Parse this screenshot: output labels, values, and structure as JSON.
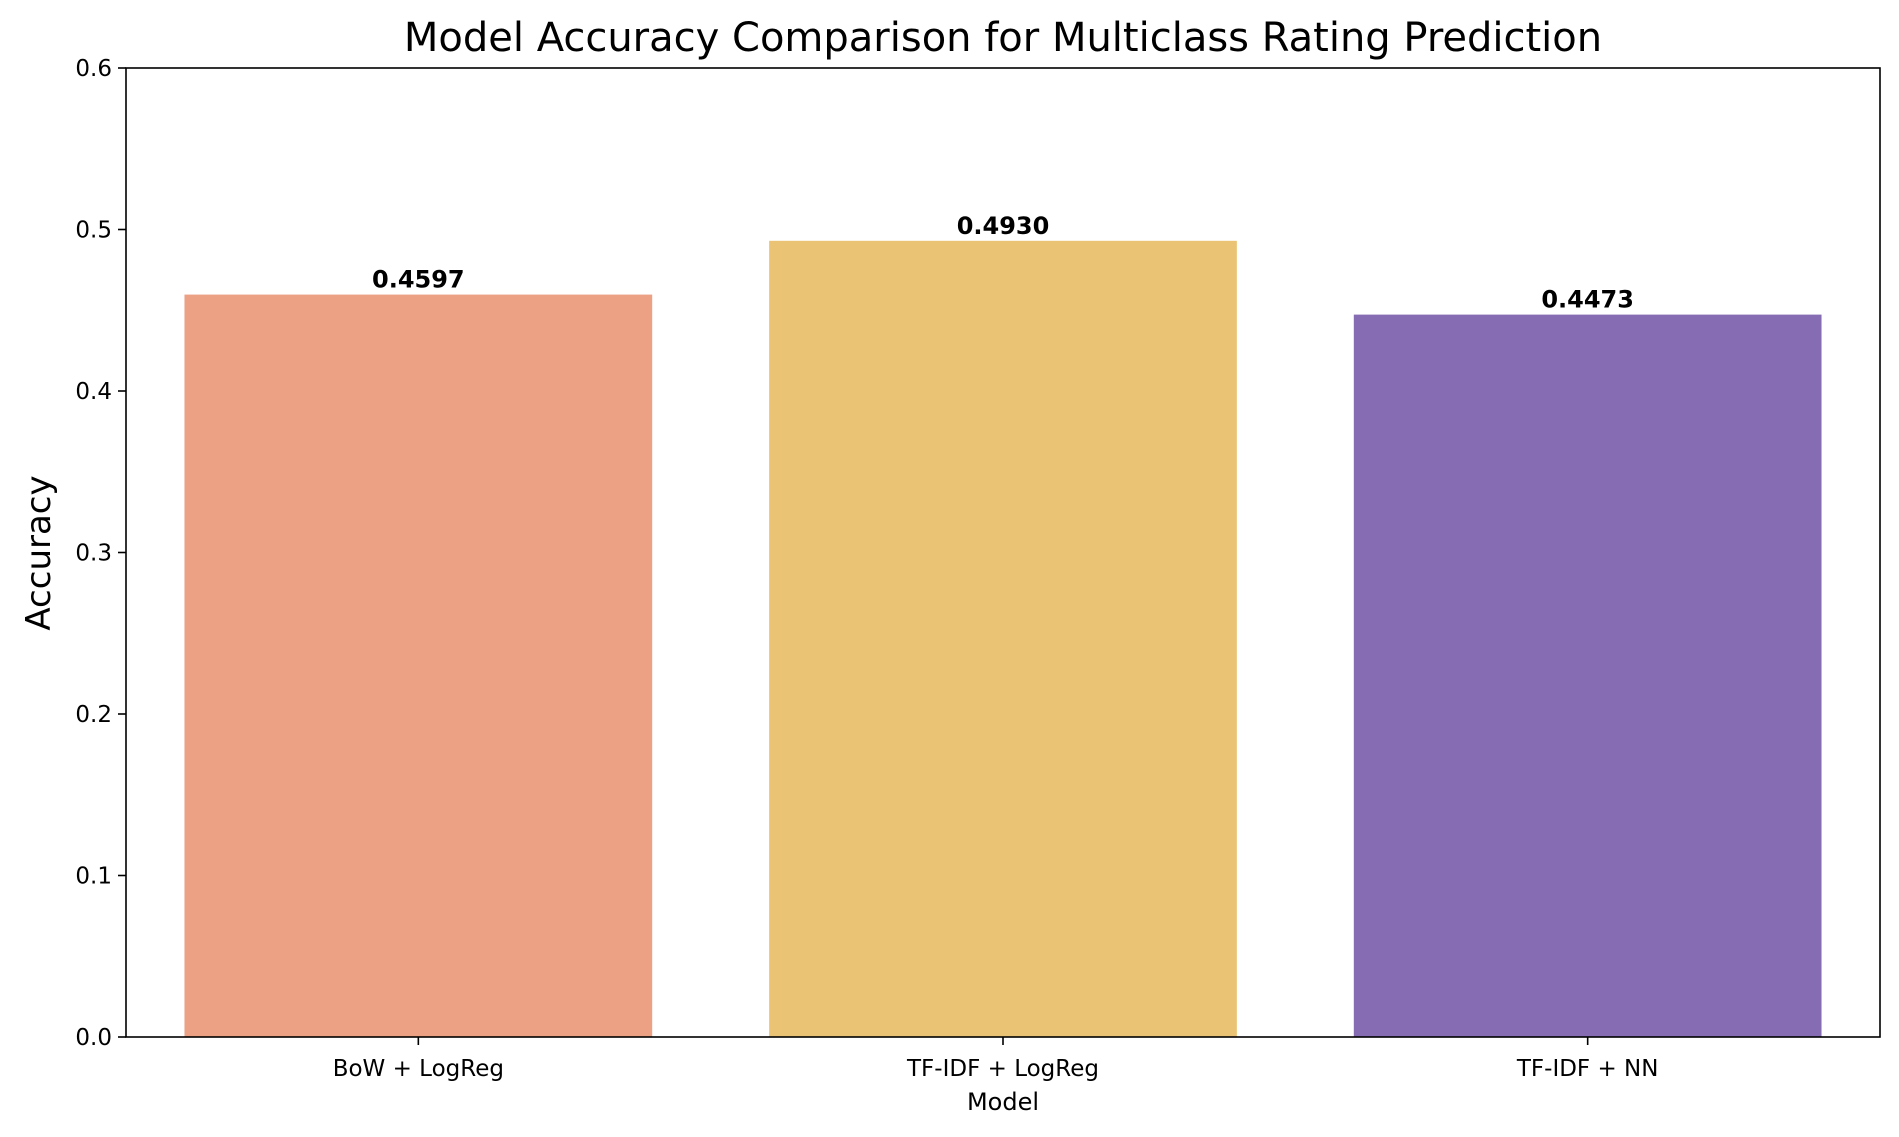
{
  "chart_data": {
    "type": "bar",
    "title": "Model Accuracy Comparison for Multiclass Rating Prediction",
    "xlabel": "Model",
    "ylabel": "Accuracy",
    "categories": [
      "BoW + LogReg",
      "TF-IDF + LogReg",
      "TF-IDF + NN"
    ],
    "values": [
      0.4597,
      0.493,
      0.4473
    ],
    "value_labels": [
      "0.4597",
      "0.4930",
      "0.4473"
    ],
    "colors": [
      "#eca084",
      "#eac474",
      "#866cb3"
    ],
    "ylim": [
      0,
      0.6
    ],
    "yticks": [
      0.0,
      0.1,
      0.2,
      0.3,
      0.4,
      0.5,
      0.6
    ],
    "ytick_labels": [
      "0.0",
      "0.1",
      "0.2",
      "0.3",
      "0.4",
      "0.5",
      "0.6"
    ],
    "grid": false,
    "legend": "none"
  }
}
